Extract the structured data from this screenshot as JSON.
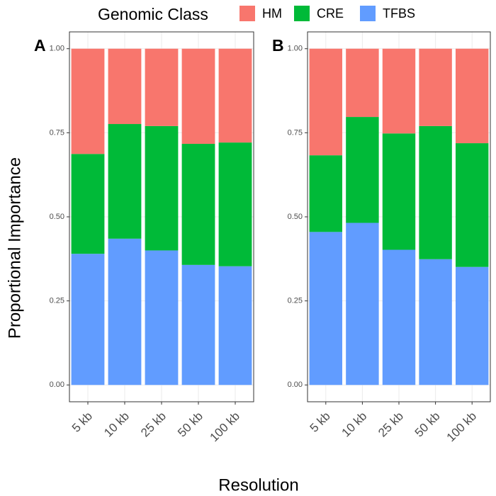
{
  "chart_data": [
    {
      "type": "stacked_bar",
      "panel_label": "A",
      "legend_title": "Genomic Class",
      "xlabel": "Resolution",
      "ylabel": "Proportional Importance",
      "categories": [
        "5 kb",
        "10 kb",
        "25 kb",
        "50 kb",
        "100 kb"
      ],
      "series": [
        {
          "name": "HM",
          "color": "#f8766d",
          "values": [
            0.313,
            0.224,
            0.23,
            0.283,
            0.279
          ]
        },
        {
          "name": "CRE",
          "color": "#00ba38",
          "values": [
            0.297,
            0.341,
            0.37,
            0.36,
            0.368
          ]
        },
        {
          "name": "TFBS",
          "color": "#619cff",
          "values": [
            0.39,
            0.435,
            0.4,
            0.357,
            0.353
          ]
        }
      ],
      "ylim": [
        -0.05,
        1.05
      ],
      "yticks": [
        {
          "value": 0,
          "label": "0.00"
        },
        {
          "value": 0.25,
          "label": "0.25"
        },
        {
          "value": 0.5,
          "label": "0.50"
        },
        {
          "value": 0.75,
          "label": "0.75"
        },
        {
          "value": 1,
          "label": "1.00"
        }
      ],
      "grid": true
    },
    {
      "type": "stacked_bar",
      "panel_label": "B",
      "categories": [
        "5 kb",
        "10 kb",
        "25 kb",
        "50 kb",
        "100 kb"
      ],
      "series": [
        {
          "color": "#f8766d",
          "values": [
            0.317,
            0.203,
            0.252,
            0.23,
            0.281
          ]
        },
        {
          "color": "#00ba38",
          "values": [
            0.228,
            0.315,
            0.346,
            0.396,
            0.368
          ]
        },
        {
          "color": "#619cff",
          "values": [
            0.455,
            0.482,
            0.402,
            0.374,
            0.351
          ]
        }
      ],
      "ylim": [
        -0.05,
        1.05
      ],
      "yticks": [
        {
          "value": 0,
          "label": "0.00"
        },
        {
          "value": 0.25,
          "label": "0.25"
        },
        {
          "value": 0.5,
          "label": "0.50"
        },
        {
          "value": 0.75,
          "label": "0.75"
        },
        {
          "value": 1,
          "label": "1.00"
        }
      ],
      "grid": true
    }
  ]
}
